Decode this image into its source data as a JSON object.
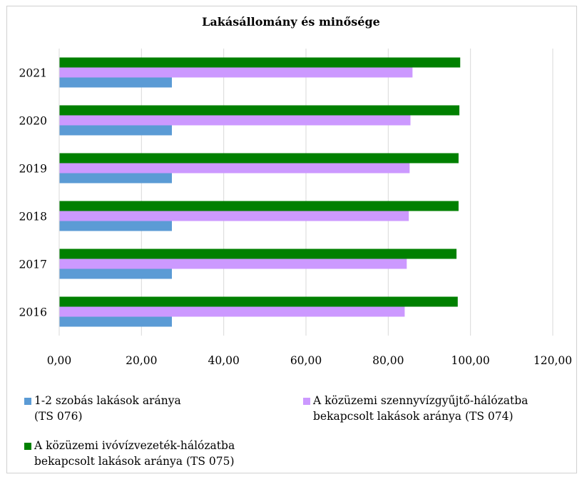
{
  "chart_data": {
    "type": "bar",
    "orientation": "horizontal",
    "title": "Lakásállomány és minősége",
    "xlabel": "",
    "ylabel": "",
    "xlim": [
      0,
      120
    ],
    "x_ticks": [
      "0,00",
      "20,00",
      "40,00",
      "60,00",
      "80,00",
      "100,00",
      "120,00"
    ],
    "categories": [
      "2016",
      "2017",
      "2018",
      "2019",
      "2020",
      "2021"
    ],
    "grid": true,
    "legend_position": "bottom",
    "series": [
      {
        "name": "1-2 szobás lakások aránya\n(TS 076)",
        "color": "#5b9bd5",
        "values": [
          27.4,
          27.4,
          27.4,
          27.4,
          27.4,
          27.4
        ]
      },
      {
        "name": "A közüzemi szennyvízgyűjtő-hálózatba\nbekapcsolt lakások aránya (TS 074)",
        "color": "#cc99ff",
        "values": [
          84.0,
          84.5,
          85.0,
          85.2,
          85.4,
          85.9
        ]
      },
      {
        "name": "A közüzemi ivóvízvezeték-hálózatba\nbekapcsolt lakások aránya (TS 075)",
        "color": "#008000",
        "values": [
          96.9,
          96.6,
          97.1,
          97.1,
          97.3,
          97.5
        ]
      }
    ]
  }
}
